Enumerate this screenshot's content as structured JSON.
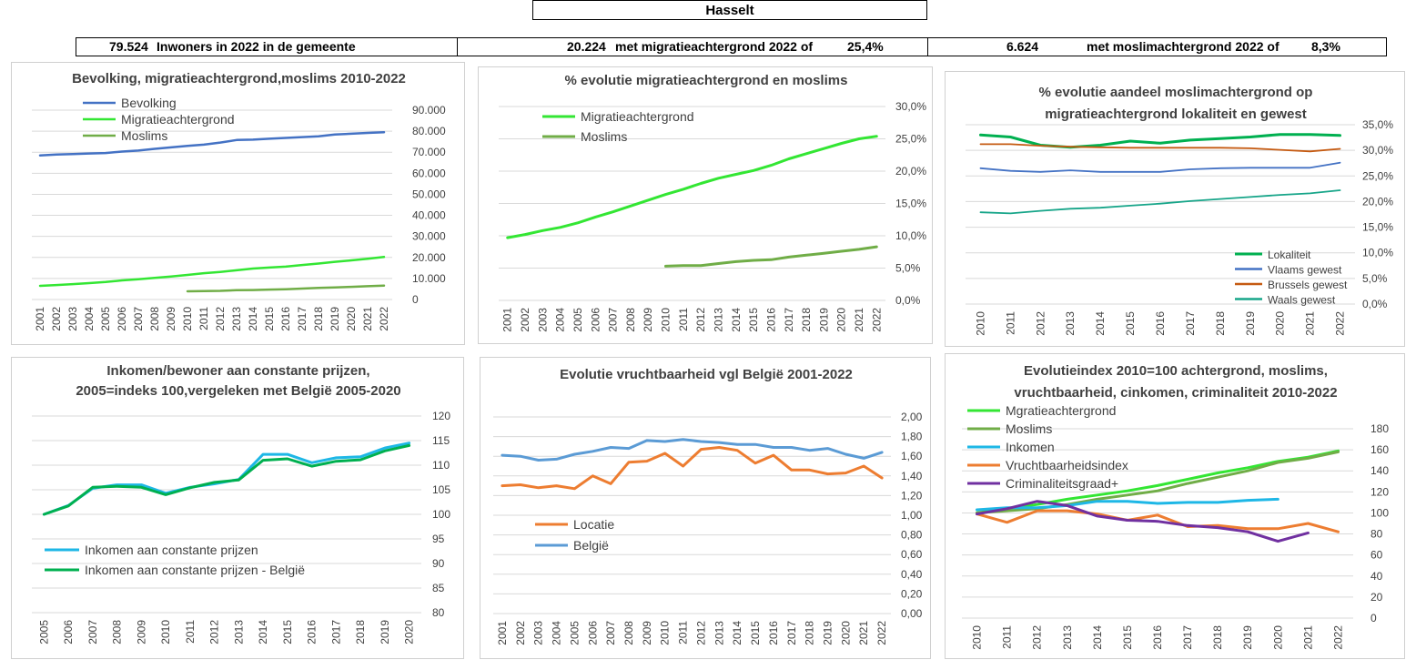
{
  "header": {
    "title": "Hasselt",
    "stats": [
      {
        "a": "79.524",
        "b": "Inwoners in 2022 in de gemeente"
      },
      {
        "a": "20.224",
        "b": "met migratieachtergrond 2022 of",
        "c": "25,4%"
      },
      {
        "a": "6.624",
        "b": "met moslimachtergrond 2022 of",
        "c": "8,3%"
      }
    ]
  },
  "colors": {
    "blue": "#4472c4",
    "brightgreen": "#33e633",
    "olive": "#70ad47",
    "darkgreen": "#00b050",
    "cyan": "#1eb7e6",
    "orange": "#ed7d31",
    "lightblue": "#5b9bd5",
    "brown": "#c55a11",
    "teal": "#17a589",
    "purple": "#7030a0",
    "grid": "#d9d9d9"
  },
  "chart_data": [
    {
      "type": "line",
      "title": "Bevolking, migratieachtergrond,moslims  2010-2022",
      "x": [
        "2001",
        "2002",
        "2003",
        "2004",
        "2005",
        "2006",
        "2007",
        "2008",
        "2009",
        "2010",
        "2011",
        "2012",
        "2013",
        "2014",
        "2015",
        "2016",
        "2017",
        "2018",
        "2019",
        "2020",
        "2021",
        "2022"
      ],
      "ylim": [
        0,
        90000
      ],
      "yticks": [
        "0",
        "10.000",
        "20.000",
        "30.000",
        "40.000",
        "50.000",
        "60.000",
        "70.000",
        "80.000",
        "90.000"
      ],
      "legend_position": "top-left",
      "series": [
        {
          "name": "Bevolking",
          "values": [
            68500,
            68900,
            69100,
            69400,
            69600,
            70300,
            70800,
            71600,
            72300,
            73000,
            73600,
            74600,
            75800,
            76000,
            76400,
            76800,
            77200,
            77600,
            78400,
            78800,
            79200,
            79524
          ]
        },
        {
          "name": "Migratieachtergrond",
          "values": [
            6500,
            6900,
            7300,
            7800,
            8300,
            9100,
            9600,
            10300,
            10900,
            11700,
            12500,
            13100,
            13900,
            14700,
            15200,
            15600,
            16400,
            17100,
            17900,
            18600,
            19400,
            20224
          ]
        },
        {
          "name": "Moslims",
          "values": [
            null,
            null,
            null,
            null,
            null,
            null,
            null,
            null,
            null,
            3900,
            4000,
            4100,
            4400,
            4500,
            4700,
            4900,
            5200,
            5500,
            5700,
            6000,
            6300,
            6624
          ]
        }
      ]
    },
    {
      "type": "line",
      "title": "% evolutie migratieachtergrond  en moslims",
      "x": [
        "2001",
        "2002",
        "2003",
        "2004",
        "2005",
        "2006",
        "2007",
        "2008",
        "2009",
        "2010",
        "2011",
        "2012",
        "2013",
        "2014",
        "2015",
        "2016",
        "2017",
        "2018",
        "2019",
        "2020",
        "2021",
        "2022"
      ],
      "ylim": [
        0,
        30
      ],
      "yticks": [
        "0,0%",
        "5,0%",
        "10,0%",
        "15,0%",
        "20,0%",
        "25,0%",
        "30,0%"
      ],
      "legend_position": "top-left",
      "series": [
        {
          "name": "Migratieachtergrond",
          "values": [
            9.7,
            10.2,
            10.8,
            11.3,
            12.0,
            12.9,
            13.7,
            14.6,
            15.5,
            16.4,
            17.2,
            18.1,
            18.9,
            19.5,
            20.1,
            20.9,
            21.9,
            22.7,
            23.5,
            24.3,
            25.0,
            25.4
          ]
        },
        {
          "name": "Moslims",
          "values": [
            null,
            null,
            null,
            null,
            null,
            null,
            null,
            null,
            null,
            5.3,
            5.4,
            5.4,
            5.7,
            6.0,
            6.2,
            6.3,
            6.7,
            7.0,
            7.3,
            7.6,
            7.9,
            8.3
          ]
        }
      ]
    },
    {
      "type": "line",
      "title": "% evolutie aandeel moslimachtergrond op migratieachtergrond lokaliteit en gewest",
      "title_lines": [
        "% evolutie aandeel moslimachtergrond op",
        "migratieachtergrond lokaliteit en gewest"
      ],
      "x": [
        "2010",
        "2011",
        "2012",
        "2013",
        "2014",
        "2015",
        "2016",
        "2017",
        "2018",
        "2019",
        "2020",
        "2021",
        "2022"
      ],
      "ylim": [
        0,
        35
      ],
      "yticks": [
        "0,0%",
        "5,0%",
        "10,0%",
        "15,0%",
        "20,0%",
        "25,0%",
        "30,0%",
        "35,0%"
      ],
      "legend_position": "bottom-right",
      "series": [
        {
          "name": "Lokaliteit",
          "values": [
            33.0,
            32.6,
            31.0,
            30.6,
            31.0,
            31.8,
            31.4,
            32.0,
            32.3,
            32.6,
            33.1,
            33.1,
            32.9
          ]
        },
        {
          "name": "Vlaams gewest",
          "values": [
            26.5,
            26.0,
            25.8,
            26.1,
            25.8,
            25.8,
            25.8,
            26.3,
            26.5,
            26.6,
            26.6,
            26.6,
            27.6
          ]
        },
        {
          "name": "Brussels gewest",
          "values": [
            31.2,
            31.2,
            30.9,
            30.7,
            30.6,
            30.5,
            30.5,
            30.5,
            30.5,
            30.4,
            30.1,
            29.8,
            30.3
          ]
        },
        {
          "name": "Waals gewest",
          "values": [
            17.9,
            17.7,
            18.2,
            18.6,
            18.8,
            19.2,
            19.6,
            20.1,
            20.5,
            20.9,
            21.3,
            21.6,
            22.2
          ]
        }
      ]
    },
    {
      "type": "line",
      "title": "Inkomen/bewoner aan constante prijzen, 2005=indeks 100,vergeleken met België 2005-2020",
      "title_lines": [
        "Inkomen/bewoner aan constante prijzen,",
        "2005=indeks 100,vergeleken met België 2005-2020"
      ],
      "x": [
        "2005",
        "2006",
        "2007",
        "2008",
        "2009",
        "2010",
        "2011",
        "2012",
        "2013",
        "2014",
        "2015",
        "2016",
        "2017",
        "2018",
        "2019",
        "2020"
      ],
      "ylim": [
        80,
        120
      ],
      "yticks": [
        "80",
        "85",
        "90",
        "95",
        "100",
        "105",
        "110",
        "115",
        "120"
      ],
      "legend_position": "bottom-left",
      "series": [
        {
          "name": "Inkomen aan constante prijzen",
          "values": [
            100,
            101.8,
            105.3,
            106.0,
            106.0,
            104.3,
            105.5,
            106.2,
            107.1,
            112.2,
            112.2,
            110.5,
            111.5,
            111.7,
            113.5,
            114.5
          ]
        },
        {
          "name": "Inkomen aan constante prijzen - België",
          "values": [
            100,
            101.7,
            105.5,
            105.7,
            105.5,
            104.0,
            105.4,
            106.5,
            107.0,
            111.0,
            111.3,
            109.8,
            110.8,
            111.1,
            112.9,
            114.0
          ]
        }
      ]
    },
    {
      "type": "line",
      "title": "Evolutie vruchtbaarheid vgl België 2001-2022",
      "x": [
        "2001",
        "2002",
        "2003",
        "2004",
        "2005",
        "2006",
        "2007",
        "2008",
        "2009",
        "2010",
        "2011",
        "2012",
        "2013",
        "2014",
        "2015",
        "2016",
        "2017",
        "2018",
        "2019",
        "2020",
        "2021",
        "2022"
      ],
      "ylim": [
        0,
        2.0
      ],
      "yticks": [
        "0,00",
        "0,20",
        "0,40",
        "0,60",
        "0,80",
        "1,00",
        "1,20",
        "1,40",
        "1,60",
        "1,80",
        "2,00"
      ],
      "legend_position": "bottom-left",
      "series": [
        {
          "name": "Locatie",
          "values": [
            1.3,
            1.31,
            1.28,
            1.3,
            1.27,
            1.4,
            1.32,
            1.54,
            1.55,
            1.63,
            1.5,
            1.67,
            1.69,
            1.66,
            1.53,
            1.61,
            1.46,
            1.46,
            1.42,
            1.43,
            1.5,
            1.38
          ]
        },
        {
          "name": "België",
          "values": [
            1.61,
            1.6,
            1.56,
            1.57,
            1.62,
            1.65,
            1.69,
            1.68,
            1.76,
            1.75,
            1.77,
            1.75,
            1.74,
            1.72,
            1.72,
            1.69,
            1.69,
            1.66,
            1.68,
            1.62,
            1.58,
            1.64
          ]
        }
      ]
    },
    {
      "type": "line",
      "title": "Evolutieindex 2010=100 achtergrond, moslims, vruchtbaarheid, cinkomen, criminaliteit  2010-2022",
      "title_lines": [
        "Evolutieindex 2010=100 achtergrond, moslims,",
        "vruchtbaarheid, cinkomen, criminaliteit  2010-2022"
      ],
      "x": [
        "2010",
        "2011",
        "2012",
        "2013",
        "2014",
        "2015",
        "2016",
        "2017",
        "2018",
        "2019",
        "2020",
        "2021",
        "2022"
      ],
      "ylim": [
        0,
        180
      ],
      "yticks": [
        "0",
        "20",
        "40",
        "60",
        "80",
        "100",
        "120",
        "140",
        "160",
        "180"
      ],
      "legend_position": "top-left",
      "series": [
        {
          "name": "Mgratieachtergrond",
          "values": [
            100,
            104,
            108,
            113,
            117,
            121,
            126,
            132,
            138,
            143,
            149,
            153,
            159
          ]
        },
        {
          "name": "Moslims",
          "values": [
            100,
            102,
            104,
            108,
            113,
            117,
            121,
            128,
            134,
            140,
            148,
            152,
            158
          ]
        },
        {
          "name": "Inkomen",
          "values": [
            103,
            105,
            105,
            107,
            111,
            111,
            109,
            110,
            110,
            112,
            113,
            null,
            null
          ]
        },
        {
          "name": "Vruchtbaarheidsindex",
          "values": [
            99,
            91,
            102,
            102,
            99,
            93,
            98,
            87,
            88,
            85,
            85,
            90,
            82
          ]
        },
        {
          "name": "Criminaliteitsgraad+",
          "values": [
            99,
            104,
            111,
            107,
            97,
            93,
            92,
            88,
            86,
            82,
            73,
            81,
            null
          ]
        }
      ]
    }
  ]
}
